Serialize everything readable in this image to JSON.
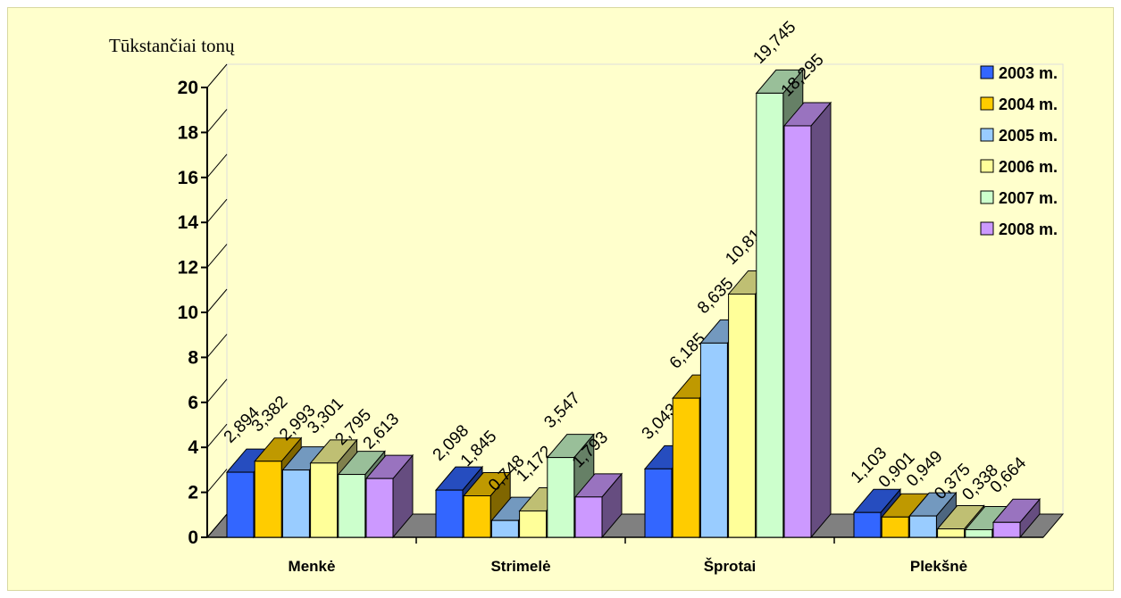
{
  "chart_data": {
    "type": "bar",
    "title": "",
    "ylabel": "Tūkstančiai tonų",
    "xlabel": "",
    "ylim": [
      0,
      20
    ],
    "yticks": [
      "0",
      "2",
      "4",
      "6",
      "8",
      "10",
      "12",
      "14",
      "16",
      "18",
      "20"
    ],
    "categories": [
      "Menkė",
      "Strimelė",
      "Šprotai",
      "Plekšnė"
    ],
    "legend_position": "top-right",
    "series": [
      {
        "name": "2003 m.",
        "color": "#3366ff",
        "values": [
          2.894,
          2.098,
          3.043,
          1.103
        ],
        "labels": [
          "2,894",
          "2,098",
          "3,043",
          "1,103"
        ]
      },
      {
        "name": "2004 m.",
        "color": "#ffcc00",
        "values": [
          3.382,
          1.845,
          6.185,
          0.901
        ],
        "labels": [
          "3,382",
          "1,845",
          "6,185",
          "0,901"
        ]
      },
      {
        "name": "2005 m.",
        "color": "#99ccff",
        "values": [
          2.993,
          0.748,
          8.635,
          0.949
        ],
        "labels": [
          "2,993",
          "0,748",
          "8,635",
          "0,949"
        ]
      },
      {
        "name": "2006 m.",
        "color": "#ffff99",
        "values": [
          3.301,
          1.172,
          10.814,
          0.375
        ],
        "labels": [
          "3,301",
          "1,172",
          "10,814",
          "0,375"
        ]
      },
      {
        "name": "2007 m.",
        "color": "#ccffcc",
        "values": [
          2.795,
          3.547,
          19.745,
          0.338
        ],
        "labels": [
          "2,795",
          "3,547",
          "19,745",
          "0,338"
        ]
      },
      {
        "name": "2008 m.",
        "color": "#cc99ff",
        "values": [
          2.613,
          1.793,
          18.295,
          0.664
        ],
        "labels": [
          "2,613",
          "1,793",
          "18,295",
          "0,664"
        ]
      }
    ]
  }
}
